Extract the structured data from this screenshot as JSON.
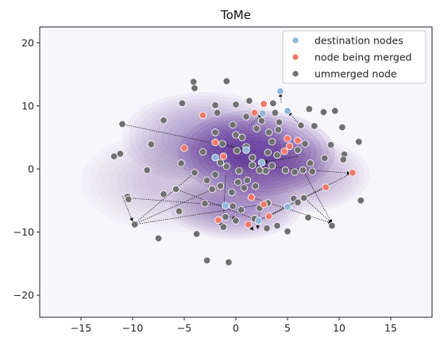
{
  "chart_data": {
    "type": "scatter",
    "title": "ToMe",
    "xlabel": "",
    "ylabel": "",
    "xlim": [
      -19,
      19
    ],
    "ylim": [
      -23.5,
      22.5
    ],
    "xticks": [
      -15,
      -10,
      -5,
      0,
      5,
      10,
      15
    ],
    "yticks": [
      -20,
      -10,
      0,
      10,
      20
    ],
    "grid": false,
    "legend_position": "top-right",
    "colors": {
      "background": "#f7f6fb",
      "density": "#3f007d",
      "destination": "#8fb6d8",
      "merged": "#f07a6c",
      "unmerged": "#707070",
      "arrow": "#111111"
    },
    "density_centers": [
      {
        "x": 2.0,
        "y": 2.5,
        "sx": 3.8,
        "sy": 3.4,
        "w": 1.0
      },
      {
        "x": 0.0,
        "y": -6.0,
        "sx": 3.2,
        "sy": 2.6,
        "w": 0.55
      },
      {
        "x": -3.0,
        "y": 5.0,
        "sx": 4.0,
        "sy": 3.6,
        "w": 0.45
      },
      {
        "x": 6.0,
        "y": -1.0,
        "sx": 3.5,
        "sy": 3.0,
        "w": 0.4
      },
      {
        "x": -6.0,
        "y": -2.0,
        "sx": 4.5,
        "sy": 4.0,
        "w": 0.25
      }
    ],
    "series": [
      {
        "name": "destination nodes",
        "points": [
          [
            4.3,
            12.3
          ],
          [
            5.0,
            9.2
          ],
          [
            2.6,
            8.8
          ],
          [
            1.0,
            3.0
          ],
          [
            2.5,
            1.0
          ],
          [
            -1.0,
            -5.8
          ],
          [
            2.2,
            -8.2
          ],
          [
            5.0,
            -6.0
          ],
          [
            -2.0,
            1.8
          ]
        ]
      },
      {
        "name": "node being merged",
        "points": [
          [
            2.7,
            10.3
          ],
          [
            -3.2,
            8.5
          ],
          [
            1.8,
            8.9
          ],
          [
            -2.0,
            4.2
          ],
          [
            5.0,
            4.8
          ],
          [
            5.2,
            3.6
          ],
          [
            6.0,
            4.5
          ],
          [
            -5.0,
            3.3
          ],
          [
            11.3,
            -0.6
          ],
          [
            8.7,
            -2.9
          ],
          [
            1.5,
            -4.5
          ],
          [
            2.7,
            -5.6
          ],
          [
            3.2,
            -7.5
          ],
          [
            -1.7,
            -8.1
          ],
          [
            1.2,
            -8.8
          ],
          [
            -1.2,
            2.0
          ],
          [
            4.7,
            2.8
          ]
        ]
      },
      {
        "name": "ummerged node",
        "points": [
          [
            -4.1,
            13.8
          ],
          [
            -4.0,
            12.8
          ],
          [
            -0.9,
            13.9
          ],
          [
            -2.0,
            10.1
          ],
          [
            0.0,
            10.2
          ],
          [
            1.3,
            10.8
          ],
          [
            3.6,
            10.4
          ],
          [
            -1.8,
            8.9
          ],
          [
            -0.3,
            7.0
          ],
          [
            1.0,
            8.3
          ],
          [
            2.5,
            7.6
          ],
          [
            4.2,
            7.4
          ],
          [
            3.8,
            8.9
          ],
          [
            -7.0,
            7.7
          ],
          [
            -11.0,
            7.1
          ],
          [
            -2.0,
            5.8
          ],
          [
            0.0,
            5.4
          ],
          [
            2.0,
            6.4
          ],
          [
            3.2,
            5.8
          ],
          [
            4.1,
            6.2
          ],
          [
            6.3,
            6.9
          ],
          [
            7.6,
            6.8
          ],
          [
            -1.3,
            4.0
          ],
          [
            0.6,
            5.0
          ],
          [
            1.0,
            3.5
          ],
          [
            3.5,
            4.3
          ],
          [
            6.7,
            4.0
          ],
          [
            -3.2,
            2.7
          ],
          [
            -1.5,
            1.0
          ],
          [
            0.1,
            2.9
          ],
          [
            1.6,
            1.8
          ],
          [
            3.1,
            2.6
          ],
          [
            4.0,
            2.2
          ],
          [
            6.0,
            3.0
          ],
          [
            9.2,
            3.8
          ],
          [
            10.3,
            6.6
          ],
          [
            11.9,
            4.3
          ],
          [
            -2.0,
            -0.9
          ],
          [
            -0.9,
            0.4
          ],
          [
            0.3,
            -0.3
          ],
          [
            1.6,
            0.6
          ],
          [
            2.9,
            -0.3
          ],
          [
            3.5,
            0.5
          ],
          [
            4.8,
            -0.2
          ],
          [
            7.2,
            0.9
          ],
          [
            7.4,
            -0.4
          ],
          [
            10.5,
            2.3
          ],
          [
            -8.2,
            3.9
          ],
          [
            -11.8,
            2.0
          ],
          [
            -11.2,
            2.4
          ],
          [
            -5.3,
            0.9
          ],
          [
            -4.0,
            -0.6
          ],
          [
            -8.6,
            -0.2
          ],
          [
            -2.8,
            -1.8
          ],
          [
            -1.5,
            -2.7
          ],
          [
            0.2,
            -2.1
          ],
          [
            1.1,
            -1.8
          ],
          [
            2.3,
            -0.2
          ],
          [
            5.7,
            -0.5
          ],
          [
            6.5,
            -0.2
          ],
          [
            -5.8,
            -3.2
          ],
          [
            -2.3,
            -3.2
          ],
          [
            -0.4,
            -3.7
          ],
          [
            0.8,
            -3.0
          ],
          [
            1.9,
            -2.7
          ],
          [
            -7.0,
            -4.0
          ],
          [
            -10.5,
            -4.4
          ],
          [
            -10.4,
            -4.8
          ],
          [
            -3.0,
            -5.5
          ],
          [
            -0.3,
            -5.9
          ],
          [
            3.1,
            -5.4
          ],
          [
            5.6,
            -4.7
          ],
          [
            6.6,
            -4.6
          ],
          [
            12.1,
            -5.0
          ],
          [
            -5.5,
            -6.7
          ],
          [
            -1.0,
            -7.6
          ],
          [
            0.5,
            -6.5
          ],
          [
            2.3,
            -6.2
          ],
          [
            6.0,
            -5.3
          ],
          [
            7.0,
            -7.7
          ],
          [
            -7.5,
            -11.0
          ],
          [
            -3.8,
            -10.3
          ],
          [
            -1.2,
            -9.2
          ],
          [
            0.0,
            -8.2
          ],
          [
            1.8,
            -7.9
          ],
          [
            4.0,
            -9.0
          ],
          [
            5.0,
            -9.9
          ],
          [
            9.3,
            -9.0
          ],
          [
            -2.8,
            -14.5
          ],
          [
            -0.7,
            -14.8
          ],
          [
            3.0,
            -9.4
          ],
          [
            -9.8,
            -8.8
          ],
          [
            8.5,
            9.0
          ],
          [
            9.6,
            9.2
          ],
          [
            7.1,
            9.5
          ],
          [
            -5.2,
            10.4
          ],
          [
            10.4,
            1.5
          ],
          [
            8.6,
            1.7
          ]
        ]
      }
    ],
    "arrows": [
      [
        4.4,
        10.5,
        4.3,
        12.0
      ],
      [
        6.0,
        7.4,
        5.1,
        9.0
      ],
      [
        1.3,
        6.8,
        2.5,
        8.6
      ],
      [
        -1.5,
        4.2,
        1.0,
        3.0
      ],
      [
        6.0,
        2.0,
        2.7,
        1.1
      ],
      [
        -11.0,
        7.1,
        1.0,
        3.0
      ],
      [
        0.3,
        0.5,
        0.4,
        -0.5
      ],
      [
        -11.0,
        -4.3,
        -10.0,
        -8.3
      ],
      [
        -10.4,
        -4.6,
        -1.0,
        -5.8
      ],
      [
        -4.0,
        -0.6,
        -9.9,
        -8.8
      ],
      [
        2.7,
        -5.6,
        -9.9,
        -8.8
      ],
      [
        -1.5,
        -2.7,
        -9.9,
        -8.8
      ],
      [
        11.3,
        -0.6,
        2.2,
        -8.2
      ],
      [
        8.7,
        -2.9,
        2.2,
        -8.2
      ],
      [
        -5.8,
        -3.2,
        2.2,
        -8.2
      ],
      [
        1.5,
        -4.5,
        9.3,
        -8.6
      ],
      [
        6.6,
        -4.6,
        9.3,
        -8.6
      ],
      [
        6.5,
        -0.2,
        9.3,
        -8.6
      ],
      [
        3.2,
        -7.5,
        5.0,
        -6.0
      ],
      [
        1.6,
        0.6,
        11.1,
        -0.7
      ],
      [
        -1.7,
        -8.1,
        -1.3,
        -9.1
      ],
      [
        1.2,
        -8.8,
        1.7,
        -9.7
      ],
      [
        -1.0,
        -1.0,
        -1.2,
        -7.9
      ],
      [
        -0.8,
        -7.4,
        0.0,
        -7.9
      ],
      [
        2.3,
        -6.2,
        2.1,
        -9.5
      ]
    ]
  }
}
